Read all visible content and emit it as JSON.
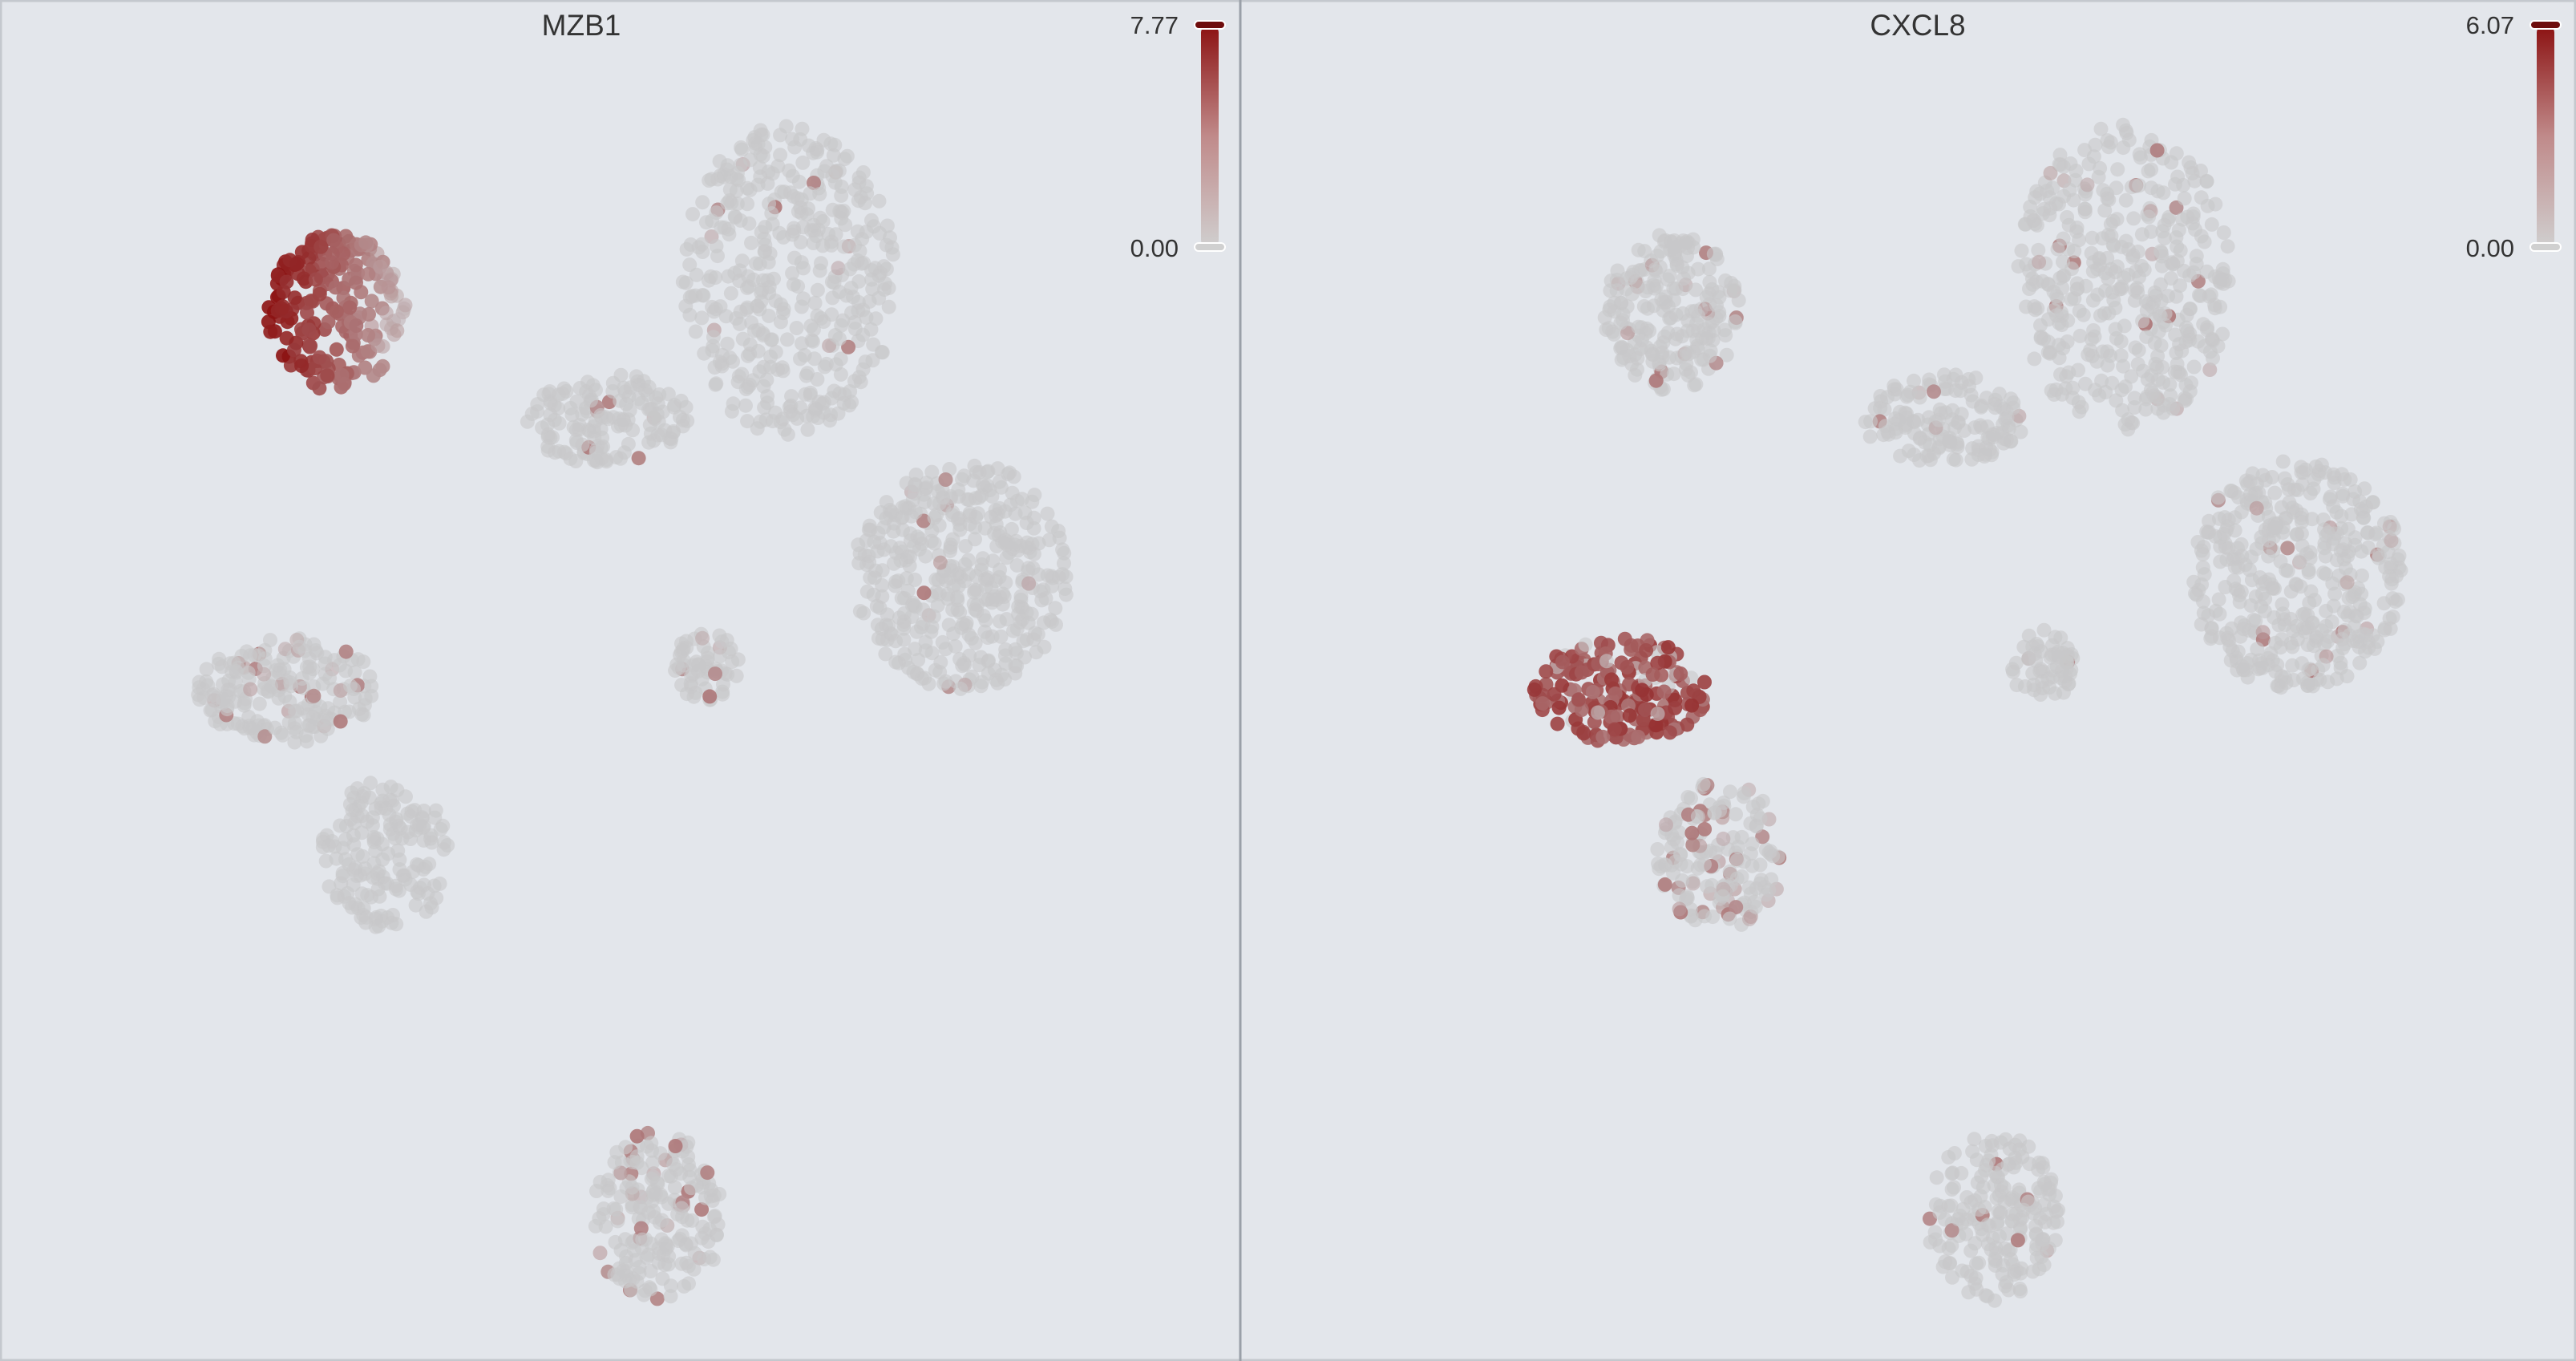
{
  "panels": [
    {
      "title": "MZB1",
      "colorbar": {
        "max": "7.77",
        "min": "0.00"
      }
    },
    {
      "title": "CXCL8",
      "colorbar": {
        "max": "6.07",
        "min": "0.00"
      }
    }
  ]
}
